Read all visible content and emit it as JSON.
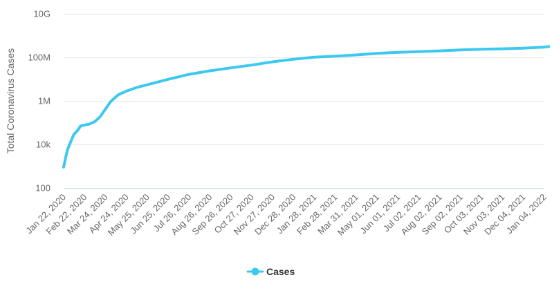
{
  "chart_data": {
    "type": "line",
    "ylabel": "Total Coronavirus Cases",
    "yscale": "log",
    "ylim": [
      100,
      10000000000
    ],
    "y_ticks": [
      {
        "value": 100,
        "label": "100"
      },
      {
        "value": 10000,
        "label": "10k"
      },
      {
        "value": 1000000,
        "label": "1M"
      },
      {
        "value": 100000000,
        "label": "100M"
      },
      {
        "value": 10000000000,
        "label": "10G"
      }
    ],
    "x_ticks": [
      "Jan 22, 2020",
      "Feb 22, 2020",
      "Mar 24, 2020",
      "Apr 24, 2020",
      "May 25, 2020",
      "Jun 25, 2020",
      "Jul 26, 2020",
      "Aug 26, 2020",
      "Sep 26, 2020",
      "Oct 27, 2020",
      "Nov 27, 2020",
      "Dec 28, 2020",
      "Jan 28, 2021",
      "Feb 28, 2021",
      "Mar 31, 2021",
      "May 01, 2021",
      "Jun 01, 2021",
      "Jul 02, 2021",
      "Aug 02, 2021",
      "Sep 02, 2021",
      "Oct 03, 2021",
      "Nov 03, 2021",
      "Dec 04, 2021",
      "Jan 04, 2022"
    ],
    "grid": true,
    "legend_position": "bottom-center",
    "series": [
      {
        "name": "Cases",
        "color": "#3dc8f0",
        "points": [
          [
            "Jan 22, 2020",
            900
          ],
          [
            "Jan 25, 2020",
            2500
          ],
          [
            "Jan 28, 2020",
            6000
          ],
          [
            "Feb 01, 2020",
            12000
          ],
          [
            "Feb 06, 2020",
            28000
          ],
          [
            "Feb 12, 2020",
            45000
          ],
          [
            "Feb 16, 2020",
            70000
          ],
          [
            "Feb 20, 2020",
            76000
          ],
          [
            "Feb 29, 2020",
            86000
          ],
          [
            "Mar 08, 2020",
            110000
          ],
          [
            "Mar 16, 2020",
            185000
          ],
          [
            "Mar 24, 2020",
            420000
          ],
          [
            "Apr 01, 2020",
            950000
          ],
          [
            "Apr 12, 2020",
            1900000
          ],
          [
            "Apr 24, 2020",
            2800000
          ],
          [
            "May 10, 2020",
            4200000
          ],
          [
            "May 25, 2020",
            5500000
          ],
          [
            "Jun 25, 2020",
            9800000
          ],
          [
            "Jul 26, 2020",
            16500000
          ],
          [
            "Aug 26, 2020",
            24000000
          ],
          [
            "Sep 26, 2020",
            33000000
          ],
          [
            "Oct 27, 2020",
            44000000
          ],
          [
            "Nov 27, 2020",
            62000000
          ],
          [
            "Dec 28, 2020",
            82000000
          ],
          [
            "Jan 28, 2021",
            102000000
          ],
          [
            "Feb 28, 2021",
            114000000
          ],
          [
            "Mar 31, 2021",
            129000000
          ],
          [
            "May 01, 2021",
            152000000
          ],
          [
            "Jun 01, 2021",
            171000000
          ],
          [
            "Jul 02, 2021",
            183000000
          ],
          [
            "Aug 02, 2021",
            199000000
          ],
          [
            "Sep 02, 2021",
            219000000
          ],
          [
            "Oct 03, 2021",
            235000000
          ],
          [
            "Nov 03, 2021",
            248000000
          ],
          [
            "Dec 04, 2021",
            265000000
          ],
          [
            "Jan 04, 2022",
            295000000
          ],
          [
            "Jan 11, 2022",
            315000000
          ]
        ]
      }
    ]
  }
}
